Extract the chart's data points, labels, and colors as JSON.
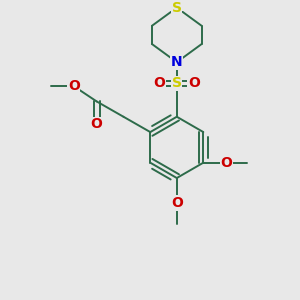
{
  "background_color": "#e8e8e8",
  "bond_color": "#2d6b4a",
  "atom_colors": {
    "S_thio": "#cccc00",
    "S_sulfonyl": "#cccc00",
    "N": "#0000dd",
    "O": "#cc0000",
    "C": "#2d6b4a"
  },
  "figsize": [
    3.0,
    3.0
  ],
  "dpi": 100,
  "lw": 1.4
}
